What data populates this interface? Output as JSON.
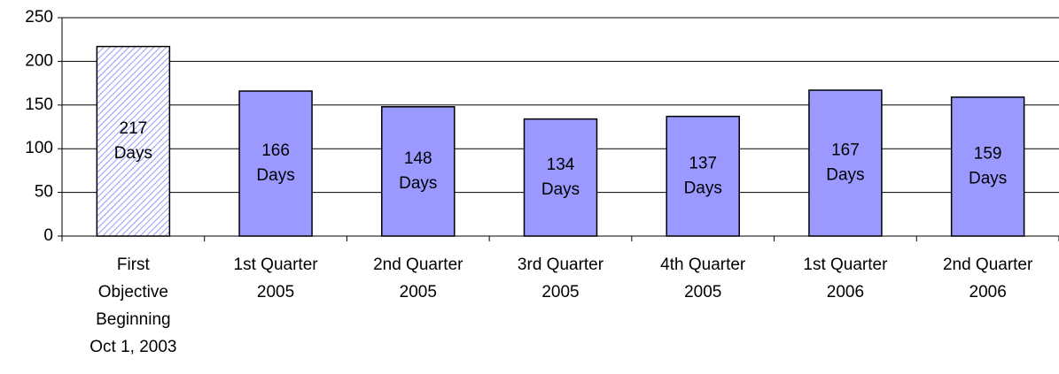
{
  "chart_data": {
    "type": "bar",
    "categories": [
      [
        "First",
        "Objective",
        "Beginning",
        "Oct 1, 2003"
      ],
      [
        "1st Quarter",
        "2005"
      ],
      [
        "2nd Quarter",
        "2005"
      ],
      [
        "3rd Quarter",
        "2005"
      ],
      [
        "4th Quarter",
        "2005"
      ],
      [
        "1st Quarter",
        "2006"
      ],
      [
        "2nd Quarter",
        "2006"
      ]
    ],
    "values": [
      217,
      166,
      148,
      134,
      137,
      167,
      159
    ],
    "value_labels": [
      [
        "217",
        "Days"
      ],
      [
        "166",
        "Days"
      ],
      [
        "148",
        "Days"
      ],
      [
        "134",
        "Days"
      ],
      [
        "137",
        "Days"
      ],
      [
        "167",
        "Days"
      ],
      [
        "159",
        "Days"
      ]
    ],
    "color": "#9999ff",
    "hatched": [
      true,
      false,
      false,
      false,
      false,
      false,
      false
    ],
    "ylim": [
      0,
      250
    ],
    "yticks": [
      0,
      50,
      100,
      150,
      200,
      250
    ],
    "grid": true
  }
}
